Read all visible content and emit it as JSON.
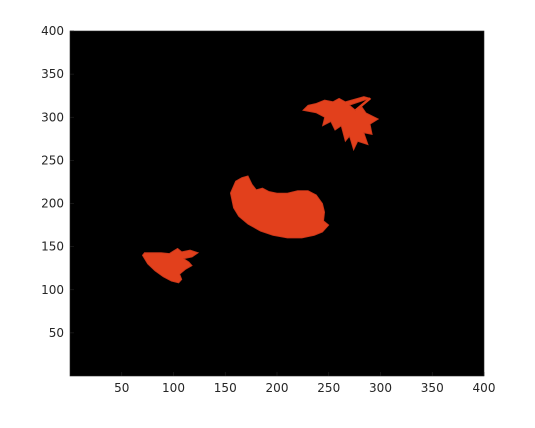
{
  "chart_data": {
    "type": "image",
    "title": "",
    "xlabel": "",
    "ylabel": "",
    "xlim": [
      0,
      400
    ],
    "ylim": [
      400,
      0
    ],
    "y_axis_direction": "reversed",
    "grid": false,
    "x_ticks": [
      50,
      100,
      150,
      200,
      250,
      300,
      350,
      400
    ],
    "x_tick_labels": [
      "50",
      "100",
      "150",
      "200",
      "250",
      "300",
      "350",
      "400"
    ],
    "y_ticks": [
      50,
      100,
      150,
      200,
      250,
      300,
      350,
      400
    ],
    "y_tick_labels": [
      "50",
      "100",
      "150",
      "200",
      "250",
      "300",
      "350",
      "400"
    ],
    "background_color": "#000000",
    "objects": [
      {
        "shape": "small-leaf-blob",
        "color": "#e2401c",
        "x_range": [
          70,
          125
        ],
        "y_range": [
          107,
          148
        ],
        "center": [
          95,
          132
        ]
      },
      {
        "shape": "large-dome-blob",
        "color": "#e2401c",
        "x_range": [
          155,
          250
        ],
        "y_range": [
          158,
          232
        ],
        "center": [
          198,
          196
        ]
      },
      {
        "shape": "maple-leaf",
        "color": "#e2401c",
        "x_range": [
          225,
          300
        ],
        "y_range": [
          252,
          322
        ],
        "center": [
          265,
          290
        ]
      }
    ]
  }
}
